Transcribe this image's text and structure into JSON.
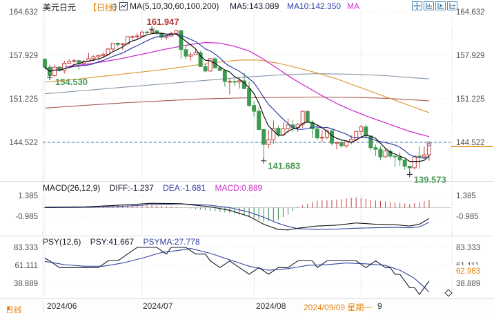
{
  "header": {
    "symbol": "美元日元",
    "period_tag": "【日线】",
    "collapse_glyph": "⊖",
    "ma_settings": "MA(5,10,30,60,100,200)",
    "ma5_label": "MA5:143.089",
    "ma10_label": "MA10:142.350",
    "ma_more_label": "MA"
  },
  "toolbar": {
    "icons": [
      "move-crosshair",
      "chart-zoom",
      "chart-play",
      "chart-step"
    ]
  },
  "main_panel": {
    "y_axis_labels": [
      "164.632",
      "157.929",
      "151.225",
      "144.522"
    ],
    "current_price_label": "144.522"
  },
  "macd_panel": {
    "title": "MACD(26,12,9)",
    "diff_label": "DIFF:-1.237",
    "dea_label": "DEA:-1.681",
    "macd_label": "MACD:0.889",
    "y_axis_labels": [
      "1.385",
      "-0.985"
    ]
  },
  "psy_panel": {
    "title": "PSY(12,6)",
    "psy_label": "PSY:41.667",
    "psyma_label": "PSYMA:27.778",
    "y_axis_labels": [
      "83.333",
      "61.111",
      "38.889"
    ],
    "current_value_label": "62.963"
  },
  "footer": {
    "period": "日线",
    "period_arrow": "▲",
    "dates": [
      "2024/06",
      "2024/07",
      "2024/08"
    ],
    "hover_date": "2024/09/09 星期一",
    "covered_date_remnant": "9"
  },
  "colors": {
    "up_red": "#c43c3c",
    "down_green": "#3d9a50",
    "annotation_red": "#b03030",
    "annotation_green": "#4a9a55",
    "ma5": "#111111",
    "ma10": "#2f3fa3",
    "ma30": "#cc2fcc",
    "ma60": "#e09b3d",
    "ma100": "#8596a6",
    "ma200": "#a85454",
    "dashed_level_blue": "#3377bb",
    "accent_orange": "#e5820c",
    "axis_text": "#4d4d55",
    "grid": "#ececf2",
    "grid_dot": "#e8dde0",
    "hist_up": "#c43c3c",
    "hist_down": "#2e8b50",
    "diff_line": "#111111",
    "dea_line": "#3346a0",
    "psy_line": "#15152e",
    "psyma_line": "#3346a0"
  },
  "chart_data": {
    "type": "candlestick",
    "symbol": "美元日元 (USD/JPY)",
    "period": "daily",
    "price_axis_ticks": [
      164.632,
      157.929,
      151.225,
      144.522
    ],
    "dashed_level": 144.522,
    "month_ticks": [
      {
        "label": "2024/06",
        "index": 0
      },
      {
        "label": "2024/07",
        "index": 20
      },
      {
        "label": "2024/08",
        "index": 43
      },
      {
        "label": "2024/09",
        "index": 65
      }
    ],
    "candles": [
      [
        157.3,
        157.5,
        155.9,
        156.1
      ],
      [
        156.1,
        156.5,
        154.53,
        154.8
      ],
      [
        154.8,
        156.5,
        154.6,
        156.1
      ],
      [
        156.1,
        156.3,
        155.4,
        155.6
      ],
      [
        155.6,
        157.1,
        155.1,
        156.7
      ],
      [
        156.7,
        157.3,
        156.6,
        157.0
      ],
      [
        157.0,
        157.4,
        156.8,
        157.1
      ],
      [
        157.1,
        157.3,
        155.7,
        156.7
      ],
      [
        156.7,
        157.2,
        156.4,
        157.0
      ],
      [
        157.0,
        158.3,
        156.9,
        157.4
      ],
      [
        157.4,
        157.9,
        157.0,
        157.7
      ],
      [
        157.7,
        158.0,
        157.2,
        157.9
      ],
      [
        157.9,
        158.4,
        157.5,
        158.1
      ],
      [
        158.1,
        159.1,
        157.9,
        158.9
      ],
      [
        158.9,
        159.8,
        158.6,
        159.8
      ],
      [
        159.8,
        159.9,
        159.2,
        159.6
      ],
      [
        159.6,
        159.8,
        158.8,
        159.7
      ],
      [
        159.7,
        160.8,
        159.6,
        160.8
      ],
      [
        160.8,
        161.0,
        160.3,
        160.8
      ],
      [
        160.8,
        161.3,
        160.3,
        160.9
      ],
      [
        160.9,
        161.7,
        160.8,
        161.5
      ],
      [
        161.5,
        161.75,
        161.2,
        161.4
      ],
      [
        161.4,
        161.947,
        161.2,
        161.7
      ],
      [
        161.7,
        161.8,
        161.1,
        161.3
      ],
      [
        161.3,
        161.4,
        160.3,
        160.7
      ],
      [
        160.7,
        161.1,
        160.3,
        160.9
      ],
      [
        160.9,
        161.5,
        160.8,
        161.3
      ],
      [
        161.3,
        161.8,
        161.2,
        161.7
      ],
      [
        161.7,
        161.8,
        157.4,
        158.8
      ],
      [
        158.8,
        159.4,
        157.3,
        157.8
      ],
      [
        157.8,
        158.4,
        157.1,
        158.0
      ],
      [
        158.0,
        158.85,
        158.0,
        158.3
      ],
      [
        158.3,
        158.6,
        156.1,
        156.2
      ],
      [
        156.2,
        156.6,
        155.3,
        155.5
      ],
      [
        155.5,
        157.5,
        155.4,
        157.4
      ],
      [
        157.4,
        157.6,
        155.9,
        156.0
      ],
      [
        156.0,
        156.3,
        155.5,
        155.6
      ],
      [
        155.6,
        155.7,
        153.1,
        153.9
      ],
      [
        153.9,
        154.3,
        151.9,
        153.9
      ],
      [
        153.9,
        154.3,
        153.2,
        153.8
      ],
      [
        153.8,
        154.6,
        152.8,
        154.0
      ],
      [
        154.0,
        155.2,
        152.7,
        152.8
      ],
      [
        152.8,
        153.9,
        150.0,
        150.2
      ],
      [
        150.2,
        150.9,
        148.5,
        149.3
      ],
      [
        149.3,
        149.8,
        146.4,
        146.5
      ],
      [
        146.5,
        146.6,
        141.683,
        144.2
      ],
      [
        144.2,
        146.4,
        143.6,
        144.9
      ],
      [
        144.9,
        147.9,
        144.3,
        146.7
      ],
      [
        146.7,
        147.1,
        145.3,
        145.7
      ],
      [
        145.7,
        147.6,
        145.5,
        146.6
      ],
      [
        146.6,
        148.2,
        146.0,
        147.2
      ],
      [
        147.2,
        147.9,
        146.1,
        146.8
      ],
      [
        146.8,
        147.5,
        146.1,
        147.3
      ],
      [
        147.3,
        149.4,
        146.8,
        149.3
      ],
      [
        149.3,
        149.4,
        147.6,
        147.6
      ],
      [
        147.6,
        147.9,
        145.2,
        146.6
      ],
      [
        146.6,
        147.3,
        144.9,
        145.2
      ],
      [
        145.2,
        146.4,
        144.5,
        145.3
      ],
      [
        145.3,
        146.5,
        145.0,
        146.3
      ],
      [
        146.3,
        146.5,
        144.05,
        144.4
      ],
      [
        144.4,
        144.6,
        143.45,
        144.5
      ],
      [
        144.5,
        145.0,
        143.7,
        144.0
      ],
      [
        144.0,
        144.7,
        143.7,
        144.6
      ],
      [
        144.6,
        145.6,
        144.2,
        145.0
      ],
      [
        145.0,
        146.2,
        144.7,
        146.2
      ],
      [
        146.2,
        147.2,
        145.6,
        146.9
      ],
      [
        146.9,
        147.2,
        145.1,
        145.5
      ],
      [
        145.5,
        145.6,
        143.2,
        143.7
      ],
      [
        143.7,
        144.2,
        142.4,
        143.45
      ],
      [
        143.45,
        143.9,
        141.8,
        142.3
      ],
      [
        142.3,
        143.6,
        142.2,
        143.2
      ],
      [
        143.2,
        143.4,
        142.0,
        142.4
      ],
      [
        142.4,
        142.5,
        140.7,
        142.3
      ],
      [
        142.3,
        143.0,
        140.9,
        141.8
      ],
      [
        141.8,
        141.9,
        140.3,
        140.85
      ],
      [
        140.85,
        140.9,
        139.573,
        140.6
      ],
      [
        140.6,
        142.4,
        140.4,
        142.4
      ],
      [
        142.4,
        143.9,
        140.44,
        142.3
      ],
      [
        142.3,
        143.95,
        142.0,
        142.6
      ],
      [
        142.6,
        144.5,
        141.7,
        144.3
      ]
    ],
    "annotations": [
      {
        "index": 22,
        "price": 161.947,
        "label": "161.947",
        "kind": "high",
        "placement": "above"
      },
      {
        "index": 1,
        "price": 154.53,
        "label": "154.530",
        "kind": "low",
        "placement": "right"
      },
      {
        "index": 45,
        "price": 141.683,
        "label": "141.683",
        "kind": "low",
        "placement": "below"
      },
      {
        "index": 75,
        "price": 139.573,
        "label": "139.573",
        "kind": "low",
        "placement": "below"
      }
    ],
    "ma_overlays": {
      "ma30": [
        [
          0,
          155.8
        ],
        [
          5,
          156.2
        ],
        [
          10,
          156.7
        ],
        [
          15,
          157.3
        ],
        [
          20,
          158.1
        ],
        [
          25,
          158.9
        ],
        [
          30,
          159.6
        ],
        [
          33,
          159.9
        ],
        [
          36,
          159.8
        ],
        [
          39,
          159.3
        ],
        [
          42,
          158.6
        ],
        [
          45,
          157.3
        ],
        [
          48,
          155.8
        ],
        [
          51,
          154.3
        ],
        [
          54,
          153.0
        ],
        [
          57,
          151.7
        ],
        [
          60,
          150.5
        ],
        [
          63,
          149.5
        ],
        [
          66,
          148.6
        ],
        [
          69,
          147.8
        ],
        [
          72,
          147.0
        ],
        [
          75,
          146.2
        ],
        [
          79,
          145.4
        ]
      ],
      "ma60": [
        [
          0,
          153.8
        ],
        [
          6,
          154.2
        ],
        [
          12,
          154.7
        ],
        [
          18,
          155.2
        ],
        [
          24,
          155.7
        ],
        [
          30,
          156.3
        ],
        [
          36,
          156.9
        ],
        [
          40,
          157.2
        ],
        [
          44,
          157.2
        ],
        [
          48,
          156.7
        ],
        [
          52,
          156.0
        ],
        [
          56,
          155.2
        ],
        [
          60,
          154.3
        ],
        [
          64,
          153.2
        ],
        [
          68,
          152.1
        ],
        [
          72,
          151.0
        ],
        [
          76,
          149.9
        ],
        [
          79,
          149.1
        ]
      ],
      "ma100": [
        [
          0,
          152.0
        ],
        [
          8,
          152.5
        ],
        [
          16,
          153.0
        ],
        [
          24,
          153.5
        ],
        [
          32,
          154.0
        ],
        [
          40,
          154.5
        ],
        [
          48,
          154.9
        ],
        [
          56,
          155.1
        ],
        [
          64,
          155.0
        ],
        [
          70,
          154.8
        ],
        [
          75,
          154.5
        ],
        [
          79,
          154.3
        ]
      ],
      "ma200": [
        [
          0,
          149.8
        ],
        [
          8,
          150.2
        ],
        [
          16,
          150.6
        ],
        [
          24,
          150.9
        ],
        [
          32,
          151.2
        ],
        [
          40,
          151.35
        ],
        [
          48,
          151.45
        ],
        [
          56,
          151.5
        ],
        [
          64,
          151.45
        ],
        [
          70,
          151.3
        ],
        [
          75,
          151.1
        ],
        [
          79,
          150.9
        ]
      ]
    },
    "macd": {
      "params": [
        26,
        12,
        9
      ],
      "axis_ticks": [
        1.385,
        -0.985
      ],
      "diff_current": -1.237,
      "dea_current": -1.681,
      "hist_current": 0.889,
      "diff": [
        [
          0,
          0.05
        ],
        [
          8,
          0.08
        ],
        [
          16,
          0.3
        ],
        [
          22,
          0.5
        ],
        [
          28,
          0.45
        ],
        [
          34,
          0.1
        ],
        [
          38,
          -0.3
        ],
        [
          42,
          -1.0
        ],
        [
          45,
          -1.9
        ],
        [
          48,
          -2.5
        ],
        [
          50,
          -2.55
        ],
        [
          52,
          -2.35
        ],
        [
          56,
          -2.1
        ],
        [
          60,
          -2.0
        ],
        [
          64,
          -1.75
        ],
        [
          68,
          -1.9
        ],
        [
          72,
          -1.95
        ],
        [
          75,
          -2.1
        ],
        [
          77,
          -1.9
        ],
        [
          79,
          -1.237
        ]
      ],
      "dea": [
        [
          0,
          0.0
        ],
        [
          8,
          0.04
        ],
        [
          16,
          0.15
        ],
        [
          22,
          0.35
        ],
        [
          28,
          0.43
        ],
        [
          34,
          0.28
        ],
        [
          38,
          0.0
        ],
        [
          42,
          -0.5
        ],
        [
          45,
          -1.1
        ],
        [
          48,
          -1.8
        ],
        [
          50,
          -2.15
        ],
        [
          52,
          -2.4
        ],
        [
          56,
          -2.5
        ],
        [
          60,
          -2.45
        ],
        [
          64,
          -2.35
        ],
        [
          68,
          -2.3
        ],
        [
          72,
          -2.25
        ],
        [
          75,
          -2.3
        ],
        [
          77,
          -2.2
        ],
        [
          79,
          -1.681
        ]
      ]
    },
    "psy": {
      "params": [
        12,
        6
      ],
      "axis_ticks": [
        83.333,
        61.111,
        38.889
      ],
      "psy_current": 41.667,
      "psyma_current": 27.778,
      "psy": [
        [
          0,
          70
        ],
        [
          1,
          66.7
        ],
        [
          3,
          58.3
        ],
        [
          11,
          58.3
        ],
        [
          13,
          66.7
        ],
        [
          15,
          66.7
        ],
        [
          17,
          75
        ],
        [
          19,
          83.3
        ],
        [
          23,
          83.3
        ],
        [
          25,
          75
        ],
        [
          26,
          83.3
        ],
        [
          29,
          83.3
        ],
        [
          31,
          75
        ],
        [
          33,
          75
        ],
        [
          34,
          66.7
        ],
        [
          36,
          58.3
        ],
        [
          38,
          66.7
        ],
        [
          40,
          58.3
        ],
        [
          42,
          50
        ],
        [
          44,
          58.3
        ],
        [
          46,
          50
        ],
        [
          48,
          58.3
        ],
        [
          50,
          58.3
        ],
        [
          52,
          66.7
        ],
        [
          55,
          66.7
        ],
        [
          56,
          58.3
        ],
        [
          58,
          66.7
        ],
        [
          62,
          66.7
        ],
        [
          64,
          66.7
        ],
        [
          66,
          58.3
        ],
        [
          68,
          66.7
        ],
        [
          70,
          58.3
        ],
        [
          71,
          58.3
        ],
        [
          72,
          50
        ],
        [
          73,
          50
        ],
        [
          74,
          41.7
        ],
        [
          75,
          33.3
        ],
        [
          76,
          33.3
        ],
        [
          77,
          25
        ],
        [
          78,
          33.3
        ],
        [
          79,
          41.667
        ]
      ],
      "psyma": [
        [
          0,
          66
        ],
        [
          4,
          62
        ],
        [
          8,
          60
        ],
        [
          12,
          60
        ],
        [
          16,
          64
        ],
        [
          20,
          70
        ],
        [
          24,
          77
        ],
        [
          28,
          80
        ],
        [
          30,
          82
        ],
        [
          34,
          76
        ],
        [
          38,
          68
        ],
        [
          42,
          60
        ],
        [
          46,
          55
        ],
        [
          50,
          57
        ],
        [
          54,
          61
        ],
        [
          58,
          62
        ],
        [
          62,
          64
        ],
        [
          66,
          63
        ],
        [
          70,
          61
        ],
        [
          73,
          55
        ],
        [
          76,
          45
        ],
        [
          78,
          34
        ],
        [
          79,
          27.778
        ]
      ]
    }
  }
}
